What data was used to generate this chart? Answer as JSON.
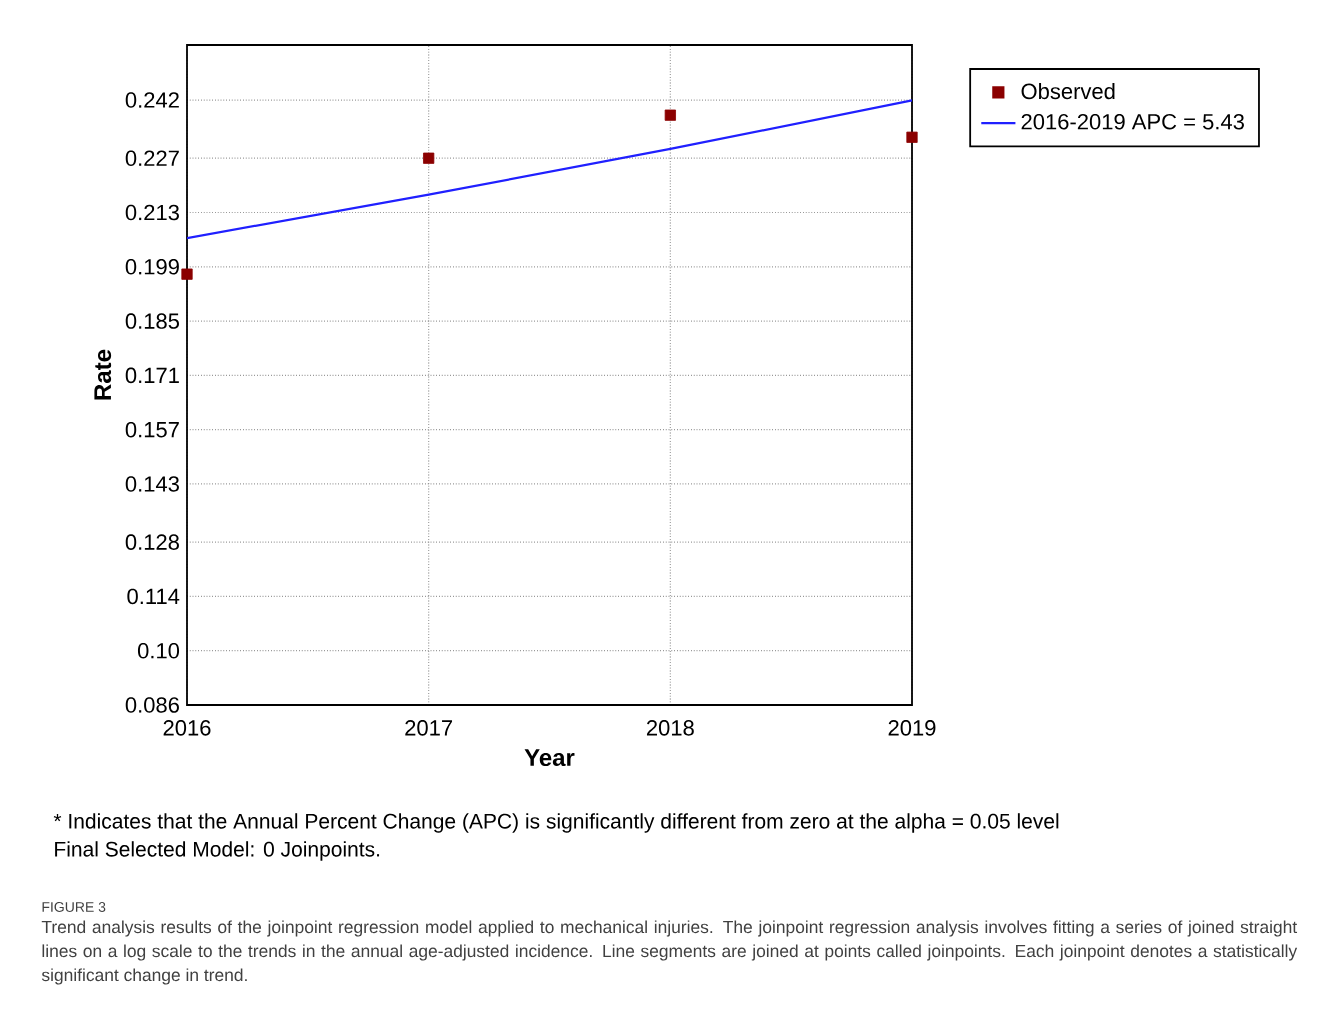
{
  "chart_data": {
    "type": "scatter",
    "xlabel": "Year",
    "ylabel": "Rate",
    "x": [
      2016,
      2017,
      2018,
      2019
    ],
    "series": [
      {
        "name": "Observed",
        "marker": "square",
        "color": "#8b0000",
        "values": [
          0.1971,
          0.227,
          0.2381,
          0.2324
        ]
      },
      {
        "name": "2016-2019 APC  = 5.43",
        "type": "line",
        "marker": "none",
        "color": "#2020ff",
        "line_style": "solid",
        "values": [
          0.2064,
          0.2176,
          0.2294,
          0.2419
        ]
      }
    ],
    "xlim": [
      2016,
      2019
    ],
    "xticks": [
      2016,
      2017,
      2018,
      2019
    ],
    "ylim": [
      0.086,
      0.2562
    ],
    "yticks": [
      0.086,
      {
        "value": 0.1,
        "label": "0.10"
      },
      0.114,
      0.128,
      0.143,
      0.157,
      0.171,
      0.185,
      0.199,
      0.213,
      0.227,
      0.242
    ],
    "grid": true,
    "legend": "top right",
    "annotations": [
      "* Indicates that the Annual Percent Change (APC) is significantly different from zero at the alpha = 0.05 level",
      "Final Selected Model: 0 Joinpoints.",
      "FIGURE 3",
      "Trend analysis results of the joinpoint regression model applied to mechanical injuries. The joinpoint regression analysis involves fitting a series of joined straight lines on a log scale to the trends in the annual age-adjusted incidence. Line segments are joined at points called joinpoints. Each joinpoint denotes a statistically significant change in trend."
    ]
  }
}
